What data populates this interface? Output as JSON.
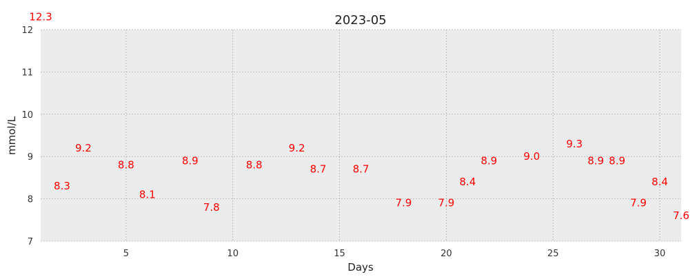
{
  "chart_data": {
    "type": "scatter",
    "title": "2023-05",
    "xlabel": "Days",
    "ylabel": "mmol/L",
    "xlim": [
      1,
      31
    ],
    "ylim": [
      7,
      12
    ],
    "xticks": [
      "5",
      "10",
      "15",
      "20",
      "25",
      "30"
    ],
    "yticks": [
      "7",
      "8",
      "9",
      "10",
      "11",
      "12"
    ],
    "grid": true,
    "label_color": "#ff0000",
    "background": "#ececec",
    "grid_color": "#b4b4b4",
    "points": [
      {
        "x": 1,
        "y": 12.3,
        "label": "12.3"
      },
      {
        "x": 2,
        "y": 8.3,
        "label": "8.3"
      },
      {
        "x": 3,
        "y": 9.2,
        "label": "9.2"
      },
      {
        "x": 5,
        "y": 8.8,
        "label": "8.8"
      },
      {
        "x": 6,
        "y": 8.1,
        "label": "8.1"
      },
      {
        "x": 8,
        "y": 8.9,
        "label": "8.9"
      },
      {
        "x": 9,
        "y": 7.8,
        "label": "7.8"
      },
      {
        "x": 11,
        "y": 8.8,
        "label": "8.8"
      },
      {
        "x": 13,
        "y": 9.2,
        "label": "9.2"
      },
      {
        "x": 14,
        "y": 8.7,
        "label": "8.7"
      },
      {
        "x": 16,
        "y": 8.7,
        "label": "8.7"
      },
      {
        "x": 18,
        "y": 7.9,
        "label": "7.9"
      },
      {
        "x": 20,
        "y": 7.9,
        "label": "7.9"
      },
      {
        "x": 21,
        "y": 8.4,
        "label": "8.4"
      },
      {
        "x": 22,
        "y": 8.9,
        "label": "8.9"
      },
      {
        "x": 24,
        "y": 9.0,
        "label": "9.0"
      },
      {
        "x": 26,
        "y": 9.3,
        "label": "9.3"
      },
      {
        "x": 27,
        "y": 8.9,
        "label": "8.9"
      },
      {
        "x": 28,
        "y": 8.9,
        "label": "8.9"
      },
      {
        "x": 29,
        "y": 7.9,
        "label": "7.9"
      },
      {
        "x": 30,
        "y": 8.4,
        "label": "8.4"
      },
      {
        "x": 31,
        "y": 7.6,
        "label": "7.6"
      }
    ]
  }
}
